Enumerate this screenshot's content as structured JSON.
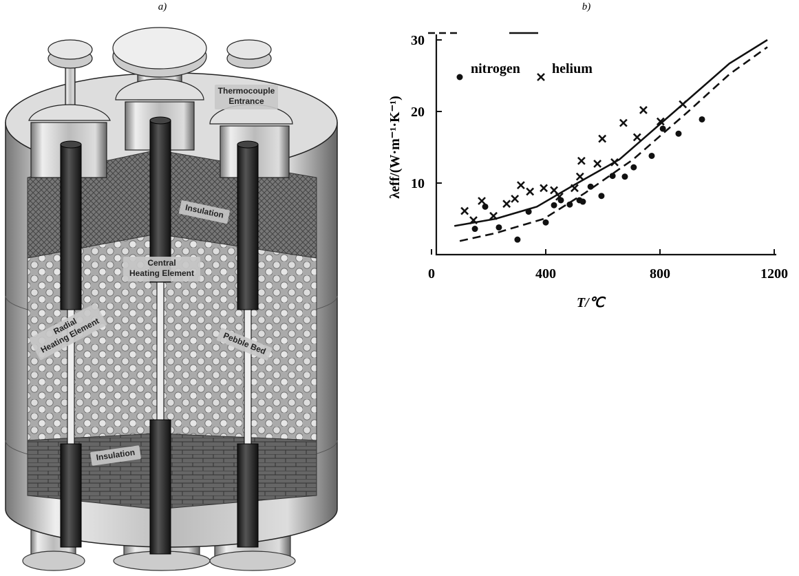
{
  "panels": {
    "a": "a)",
    "b": "b)"
  },
  "diagram": {
    "labels": [
      {
        "lines": [
          "Thermocouple",
          "Entrance"
        ]
      },
      {
        "lines": [
          "Insulation"
        ]
      },
      {
        "lines": [
          "Central",
          "Heating Element"
        ]
      },
      {
        "lines": [
          "Radial",
          "Heating Element"
        ]
      },
      {
        "lines": [
          "Pebble Bed"
        ]
      },
      {
        "lines": [
          "Insulation"
        ]
      }
    ]
  },
  "chart_data": {
    "type": "scatter",
    "x_label": "T/℃",
    "y_label": "λeff/(W·m⁻¹·K⁻¹)",
    "xlim": [
      0,
      1200
    ],
    "xticks": [
      0,
      400,
      800,
      1200
    ],
    "ylim": [
      0,
      30
    ],
    "yticks": [
      10,
      20,
      30
    ],
    "series": [
      {
        "name": "nitrogen",
        "marker": "dot",
        "line_style": "dashed",
        "color": "#111111",
        "x": [
          152,
          188,
          236,
          301,
          340,
          400,
          429,
          453,
          484,
          518,
          530,
          557,
          595,
          634,
          677,
          708,
          771,
          810,
          865,
          947
        ],
        "values": [
          3.6,
          6.7,
          3.8,
          2.1,
          6.0,
          4.5,
          6.9,
          7.6,
          7.0,
          7.6,
          7.4,
          9.5,
          8.2,
          11.0,
          10.9,
          12.2,
          13.8,
          17.6,
          16.9,
          18.9
        ],
        "fit_x": [
          99,
          224,
          393,
          537,
          706,
          899,
          1043,
          1176
        ],
        "fit_values": [
          1.9,
          3.0,
          5.0,
          8.6,
          13.3,
          20,
          25.2,
          29
        ]
      },
      {
        "name": "helium",
        "marker": "x",
        "line_style": "solid",
        "color": "#111111",
        "x": [
          116,
          147,
          176,
          217,
          263,
          292,
          313,
          345,
          393,
          429,
          448,
          501,
          520,
          525,
          581,
          598,
          641,
          672,
          720,
          742,
          802,
          880
        ],
        "values": [
          6.1,
          4.8,
          7.5,
          5.4,
          7.1,
          7.8,
          9.7,
          8.8,
          9.3,
          9.0,
          8.1,
          9.3,
          10.9,
          13.1,
          12.7,
          16.2,
          12.9,
          18.4,
          16.4,
          20.2,
          18.6,
          21.0
        ],
        "fit_x": [
          80,
          224,
          369,
          489,
          658,
          851,
          1043,
          1176
        ],
        "fit_values": [
          4.0,
          5.0,
          6.7,
          9.5,
          13.3,
          20,
          26.7,
          30
        ]
      }
    ]
  }
}
